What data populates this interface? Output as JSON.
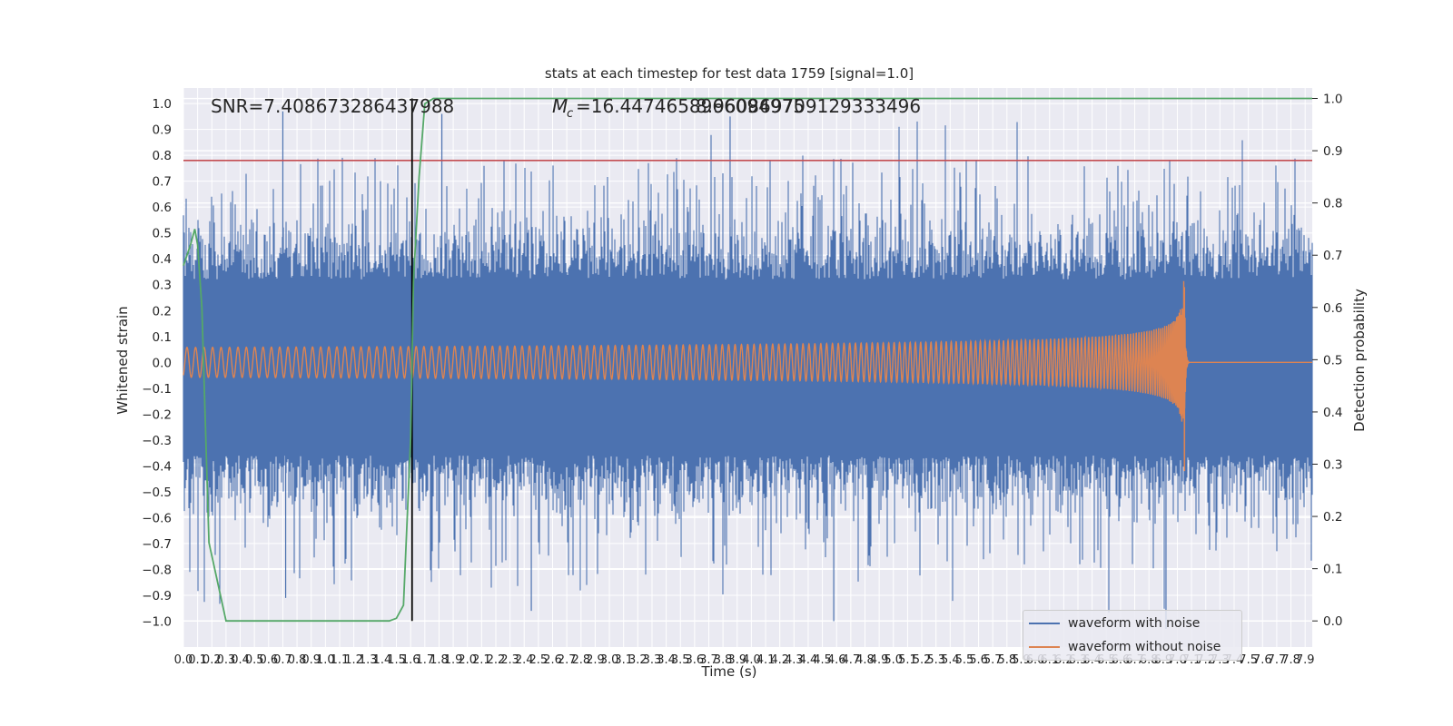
{
  "chart_data": {
    "type": "line",
    "title": "stats at each timestep for test data 1759 [signal=1.0]",
    "xlabel": "Time (s)",
    "ylabel": "Whitened strain",
    "ylabel_right": "Detection probability",
    "xlim": [
      0.0,
      7.95
    ],
    "ylim": [
      -1.1,
      1.06
    ],
    "ylim_right": [
      -0.05,
      1.02
    ],
    "x_ticks": [
      "0.0",
      "0.1",
      "0.2",
      "0.3",
      "0.4",
      "0.5",
      "0.6",
      "0.7",
      "0.8",
      "0.9",
      "1.0",
      "1.1",
      "1.2",
      "1.3",
      "1.4",
      "1.5",
      "1.6",
      "1.7",
      "1.8",
      "1.9",
      "2.0",
      "2.1",
      "2.2",
      "2.3",
      "2.4",
      "2.5",
      "2.6",
      "2.7",
      "2.8",
      "2.9",
      "3.0",
      "3.1",
      "3.2",
      "3.3",
      "3.4",
      "3.5",
      "3.6",
      "3.7",
      "3.8",
      "3.9",
      "4.0",
      "4.1",
      "4.2",
      "4.3",
      "4.4",
      "4.5",
      "4.6",
      "4.7",
      "4.8",
      "4.9",
      "5.0",
      "5.1",
      "5.2",
      "5.3",
      "5.4",
      "5.5",
      "5.6",
      "5.7",
      "5.8",
      "5.9",
      "6.0",
      "6.1",
      "6.2",
      "6.3",
      "6.4",
      "6.5",
      "6.6",
      "6.7",
      "6.8",
      "6.9",
      "7.0",
      "7.1",
      "7.2",
      "7.3",
      "7.4",
      "7.5",
      "7.6",
      "7.7",
      "7.8",
      "7.9"
    ],
    "y_ticks_left": [
      "1.0",
      "0.9",
      "0.8",
      "0.7",
      "0.6",
      "0.5",
      "0.4",
      "0.3",
      "0.2",
      "0.1",
      "0.0",
      "-0.1",
      "-0.2",
      "-0.3",
      "-0.4",
      "-0.5",
      "-0.6",
      "-0.7",
      "-0.8",
      "-0.9",
      "-1.0"
    ],
    "y_ticks_right": [
      "1.0",
      "0.9",
      "0.8",
      "0.7",
      "0.6",
      "0.5",
      "0.4",
      "0.3",
      "0.2",
      "0.1",
      "0.0"
    ],
    "annotations": {
      "snr": "SNR=7.408673286437988",
      "mc": "=16.4474658966094975",
      "mc_overlap": "8.960869709129333496",
      "mc_symbol": "M",
      "mc_subscript": "c"
    },
    "threshold": 0.78,
    "marker_time": 1.61,
    "series": [
      {
        "name": "waveform with noise",
        "color": "#4c72b0",
        "kind": "noise",
        "peak_max": 0.97,
        "peak_min": -1.03
      },
      {
        "name": "waveform without noise",
        "color": "#dd8452",
        "kind": "chirp",
        "merger_time": 7.05,
        "peak": 0.34
      },
      {
        "color": "#55a868",
        "axis": "right",
        "x": [
          0.0,
          0.05,
          0.08,
          0.1,
          0.13,
          0.18,
          0.3,
          1.45,
          1.5,
          1.55,
          1.6,
          1.62,
          1.66,
          1.7,
          1.76,
          2.0,
          7.95
        ],
        "values": [
          0.68,
          0.72,
          0.75,
          0.72,
          0.6,
          0.15,
          0.0,
          0.0,
          0.005,
          0.03,
          0.35,
          0.65,
          0.85,
          0.99,
          1.0,
          1.0,
          1.0
        ]
      },
      {
        "color": "#c44e52",
        "kind": "threshold"
      }
    ],
    "legend": {
      "placement": "lower-right"
    },
    "grid": true
  }
}
